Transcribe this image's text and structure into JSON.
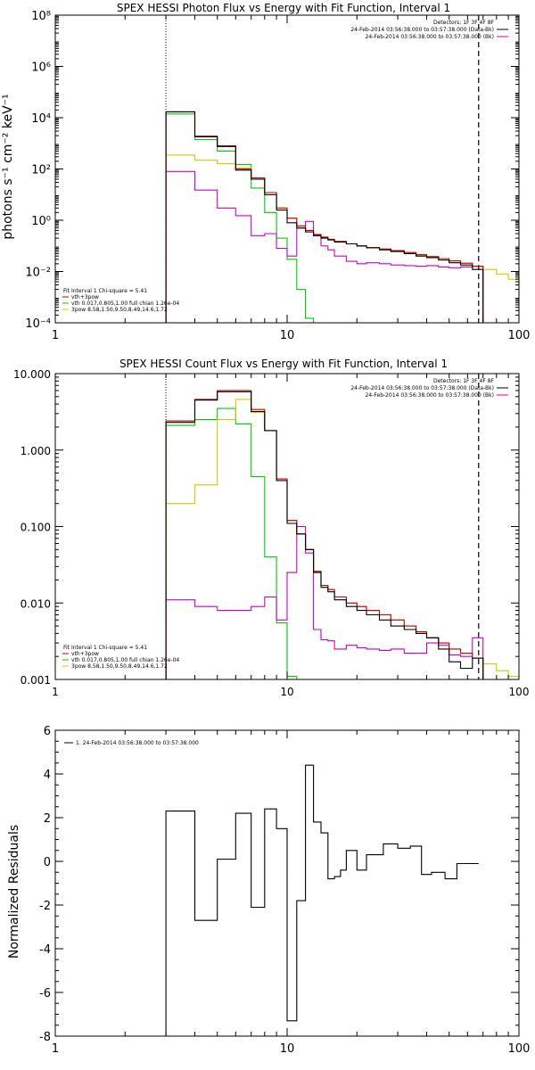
{
  "chart_data": [
    {
      "type": "line",
      "title": "SPEX HESSI Photon Flux vs Energy with Fit Function, Interval 1",
      "ylabel": "photons s⁻¹ cm⁻² keV⁻¹",
      "xlabel": "",
      "xscale": "log",
      "yscale": "log",
      "xlim": [
        1,
        100
      ],
      "ylim": [
        0.0001,
        100000000
      ],
      "x_ticks": [
        "1",
        "10",
        "100"
      ],
      "y_ticks": [
        "10⁻⁴",
        "10⁻²",
        "10⁰",
        "10²",
        "10⁴",
        "10⁶",
        "10⁸"
      ],
      "y_tick_values": [
        0.0001,
        0.01,
        1,
        100,
        10000,
        1000000,
        100000000
      ],
      "bin_edges": [
        3,
        4,
        5,
        6,
        7,
        8,
        9,
        10,
        11,
        12,
        13,
        14,
        15,
        16,
        18,
        20,
        22,
        25,
        28,
        32,
        36,
        40,
        45,
        50,
        56,
        63,
        70,
        80,
        90,
        100
      ],
      "fit_range": [
        3,
        67
      ],
      "legend_top": {
        "position": "top-right",
        "lines": [
          {
            "text": "Detectors: 1F 3F 4F 8F",
            "color": ""
          },
          {
            "text": "24-Feb-2014 03:56:38.000 to 03:57:38.000 (Data-Bk)",
            "color": "#000000"
          },
          {
            "text": "24-Feb-2014 03:56:38.000 to 03:57:38.000 (Bk)",
            "color": "#cc00cc"
          }
        ]
      },
      "legend_fit": {
        "position": "bottom-left",
        "lines": [
          {
            "text": "Fit Interval 1    Chi-square = 5.41",
            "color": ""
          },
          {
            "text": "vth+3pow",
            "color": "#cc0000"
          },
          {
            "text": "vth 0.017,0.805,1.00  full chian 1.26e-04",
            "color": "#00cc00"
          },
          {
            "text": "3pow 8.58,1.50,9.50,8.49,14.6,1.72",
            "color": "#cccc00"
          }
        ]
      },
      "series": [
        {
          "name": "Data-Bk",
          "color": "#000000",
          "values": [
            17000,
            1800,
            750,
            90,
            40,
            10,
            2.5,
            0.8,
            0.5,
            0.35,
            0.25,
            0.2,
            0.17,
            0.14,
            0.12,
            0.1,
            0.085,
            0.07,
            0.06,
            0.05,
            0.04,
            0.035,
            0.028,
            0.022,
            0.018,
            0.012,
            null,
            null,
            null
          ]
        },
        {
          "name": "Bk",
          "color": "#cc00cc",
          "values": [
            80,
            15,
            3,
            1.5,
            0.25,
            0.3,
            0.08,
            0.04,
            0.5,
            0.9,
            0.25,
            0.1,
            0.07,
            0.04,
            0.025,
            0.02,
            0.022,
            0.02,
            0.018,
            0.017,
            0.016,
            0.017,
            0.015,
            0.014,
            0.015,
            0.016,
            null,
            null,
            null
          ]
        },
        {
          "name": "vth+3pow",
          "color": "#cc0000",
          "values": [
            17000,
            1900,
            800,
            100,
            45,
            12,
            3,
            1.2,
            0.6,
            0.4,
            0.28,
            0.22,
            0.18,
            0.15,
            0.12,
            0.1,
            0.085,
            0.075,
            0.065,
            0.055,
            0.045,
            0.038,
            0.032,
            0.026,
            0.021,
            0.016,
            null,
            null,
            null
          ]
        },
        {
          "name": "vth",
          "color": "#00cc00",
          "values": [
            14000,
            1400,
            500,
            150,
            18,
            2,
            0.2,
            0.03,
            0.002,
            0.00015,
            null,
            null,
            null,
            null,
            null,
            null,
            null,
            null,
            null,
            null,
            null,
            null,
            null,
            null,
            null,
            null,
            null,
            null,
            null
          ]
        },
        {
          "name": "3pow",
          "color": "#cccc00",
          "values": [
            350,
            220,
            160,
            110,
            45,
            12,
            3,
            1.2,
            0.6,
            0.4,
            0.28,
            0.22,
            0.18,
            0.15,
            0.12,
            0.1,
            0.085,
            0.075,
            0.065,
            0.055,
            0.045,
            0.038,
            0.032,
            0.026,
            0.021,
            0.016,
            0.012,
            0.008,
            0.005
          ]
        }
      ]
    },
    {
      "type": "line",
      "title": "SPEX HESSI Count Flux vs Energy with Fit Function, Interval 1",
      "ylabel": "",
      "xlabel": "",
      "xscale": "log",
      "yscale": "log",
      "xlim": [
        1,
        100
      ],
      "ylim": [
        0.001,
        10
      ],
      "x_ticks": [
        "1",
        "10",
        "100"
      ],
      "y_ticks": [
        "0.001",
        "0.010",
        "0.100",
        "1.000",
        "10.000"
      ],
      "y_tick_values": [
        0.001,
        0.01,
        0.1,
        1,
        10
      ],
      "bin_edges": [
        3,
        4,
        5,
        6,
        7,
        8,
        9,
        10,
        11,
        12,
        13,
        14,
        15,
        16,
        18,
        20,
        22,
        25,
        28,
        32,
        36,
        40,
        45,
        50,
        56,
        63,
        70,
        80,
        90,
        100
      ],
      "fit_range": [
        3,
        67
      ],
      "legend_top": {
        "position": "top-right",
        "lines": [
          {
            "text": "Detectors: 1F 3F 4F 8F",
            "color": ""
          },
          {
            "text": "24-Feb-2014 03:56:38.000 to 03:57:38.000 (Data-Bk)",
            "color": "#000000"
          },
          {
            "text": "24-Feb-2014 03:56:38.000 to 03:57:38.000 (Bk)",
            "color": "#cc00cc"
          }
        ]
      },
      "legend_fit": {
        "position": "bottom-left",
        "lines": [
          {
            "text": "Fit Interval 1    Chi-square = 5.41",
            "color": ""
          },
          {
            "text": "vth+3pow",
            "color": "#cc0000"
          },
          {
            "text": "vth 0.017,0.805,1.00  full chian 1.26e-04",
            "color": "#00cc00"
          },
          {
            "text": "3pow 8.58,1.50,9.50,8.49,14.6,1.72",
            "color": "#cccc00"
          }
        ]
      },
      "series": [
        {
          "name": "Data-Bk",
          "color": "#000000",
          "values": [
            2.3,
            4.5,
            5.8,
            5.8,
            3.2,
            1.8,
            0.4,
            0.11,
            0.08,
            0.05,
            0.025,
            0.016,
            0.014,
            0.011,
            0.009,
            0.008,
            0.007,
            0.006,
            0.005,
            0.0045,
            0.004,
            0.0035,
            0.0025,
            0.0017,
            0.0014,
            0.0019,
            null,
            null,
            null
          ]
        },
        {
          "name": "Bk",
          "color": "#cc00cc",
          "values": [
            0.011,
            0.009,
            0.008,
            0.008,
            0.009,
            0.012,
            0.006,
            0.025,
            0.1,
            0.045,
            0.0045,
            0.0033,
            0.0032,
            0.0025,
            0.0028,
            0.0026,
            0.0025,
            0.0024,
            0.0025,
            0.0022,
            0.0022,
            0.003,
            0.0028,
            0.0021,
            0.002,
            0.0035,
            null,
            null,
            null
          ]
        },
        {
          "name": "vth+3pow",
          "color": "#cc0000",
          "values": [
            2.4,
            4.6,
            6,
            6,
            3.4,
            1.8,
            0.42,
            0.12,
            0.08,
            0.05,
            0.026,
            0.017,
            0.015,
            0.012,
            0.01,
            0.009,
            0.008,
            0.007,
            0.006,
            0.005,
            0.0042,
            0.0035,
            0.003,
            0.0025,
            0.0022,
            0.0019,
            null,
            null,
            null
          ]
        },
        {
          "name": "vth",
          "color": "#00cc00",
          "values": [
            2.1,
            2.5,
            3.5,
            2.2,
            0.45,
            0.04,
            0.0055,
            0.0011,
            null,
            null,
            null,
            null,
            null,
            null,
            null,
            null,
            null,
            null,
            null,
            null,
            null,
            null,
            null,
            null,
            null,
            null,
            null,
            null,
            null
          ]
        },
        {
          "name": "3pow",
          "color": "#cccc00",
          "values": [
            0.2,
            0.35,
            2.5,
            4.6,
            3.1,
            1.8,
            0.42,
            0.12,
            0.08,
            0.05,
            0.026,
            0.017,
            0.015,
            0.012,
            0.01,
            0.009,
            0.008,
            0.007,
            0.006,
            0.005,
            0.0042,
            0.0035,
            0.003,
            0.0025,
            0.0022,
            0.0019,
            0.0016,
            0.0013,
            0.0011
          ]
        }
      ]
    },
    {
      "type": "line",
      "title": "",
      "ylabel": "Normalized Residuals",
      "xlabel": "",
      "xscale": "log",
      "yscale": "linear",
      "xlim": [
        1,
        100
      ],
      "ylim": [
        -8,
        6
      ],
      "x_ticks": [
        "1",
        "10",
        "100"
      ],
      "y_ticks": [
        "-8",
        "-6",
        "-4",
        "-2",
        "0",
        "2",
        "4",
        "6"
      ],
      "y_tick_values": [
        -8,
        -6,
        -4,
        -2,
        0,
        2,
        4,
        6
      ],
      "bin_edges": [
        3,
        3.5,
        4,
        4.5,
        5,
        5.5,
        6,
        6.5,
        7,
        7.5,
        8,
        8.5,
        9,
        9.5,
        10,
        10.5,
        11,
        11.5,
        12,
        12.5,
        13,
        14,
        15,
        16,
        17,
        18,
        19,
        20,
        22,
        24,
        26,
        28,
        30,
        32,
        34,
        36,
        38,
        40,
        42,
        45,
        48,
        51,
        54,
        57,
        60,
        63,
        67
      ],
      "legend_top": {
        "position": "top-left",
        "lines": [
          {
            "text": "1. 24-Feb-2014 03:56:38.000 to 03:57:38.000",
            "color": "#000000"
          }
        ]
      },
      "series": [
        {
          "name": "1. 24-Feb-2014 03:56:38.000 to 03:57:38.000",
          "color": "#000000",
          "values": [
            2.3,
            2.3,
            -2.7,
            -2.7,
            0.1,
            0.1,
            2.2,
            2.2,
            -2.1,
            -2.1,
            2.4,
            2.4,
            1.5,
            1.5,
            -7.3,
            -7.3,
            -1.8,
            -1.8,
            4.4,
            4.4,
            1.8,
            1.3,
            -0.8,
            -0.7,
            -0.4,
            0.5,
            0.5,
            -0.4,
            0.3,
            0.3,
            0.8,
            0.8,
            0.6,
            0.6,
            0.7,
            0.7,
            -0.6,
            -0.6,
            -0.5,
            -0.5,
            -0.8,
            -0.8,
            -0.1,
            -0.1,
            -0.1,
            -0.1
          ]
        }
      ]
    }
  ]
}
